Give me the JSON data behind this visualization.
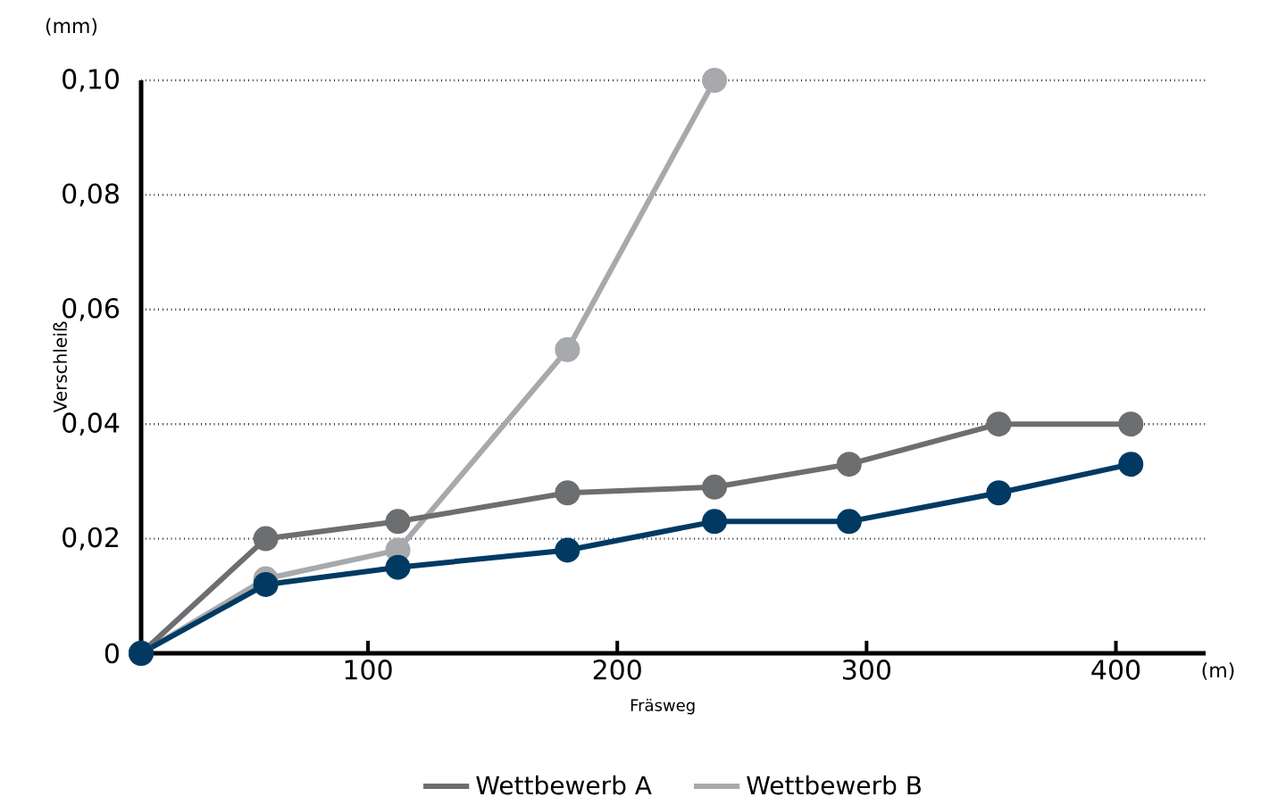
{
  "chart_data": {
    "type": "line",
    "ylabel": "Verschleiß",
    "xlabel": "Fräsweg",
    "annotations": [
      "(mm)",
      "(m)"
    ],
    "xlim": [
      9,
      436
    ],
    "ylim": [
      0,
      0.1
    ],
    "xticks": [
      100,
      200,
      300,
      400
    ],
    "yticks": [
      {
        "value": 0,
        "label": "0"
      },
      {
        "value": 0.02,
        "label": "0,02"
      },
      {
        "value": 0.04,
        "label": "0,04"
      },
      {
        "value": 0.06,
        "label": "0,06"
      },
      {
        "value": 0.08,
        "label": "0,08"
      },
      {
        "value": 0.1,
        "label": "0,10"
      }
    ],
    "grid": "y",
    "legend": "bottom",
    "marker": "circle",
    "line_style": "solid",
    "series": [
      {
        "color": "#003a63",
        "x": [
          9,
          59,
          112,
          180,
          239,
          293,
          353,
          406
        ],
        "values": [
          0,
          0.012,
          0.015,
          0.018,
          0.023,
          0.023,
          0.028,
          0.033
        ]
      },
      {
        "name": "Wettbewerb A",
        "color": "#6d6e70",
        "x": [
          9,
          59,
          112,
          180,
          239,
          293,
          353,
          406
        ],
        "values": [
          0,
          0.02,
          0.023,
          0.028,
          0.029,
          0.033,
          0.04,
          0.04
        ]
      },
      {
        "name": "Wettbewerb B",
        "color": "#a7a9ac",
        "x": [
          9,
          59,
          112,
          180,
          239
        ],
        "values": [
          0,
          0.013,
          0.018,
          0.053,
          0.1
        ]
      }
    ]
  }
}
